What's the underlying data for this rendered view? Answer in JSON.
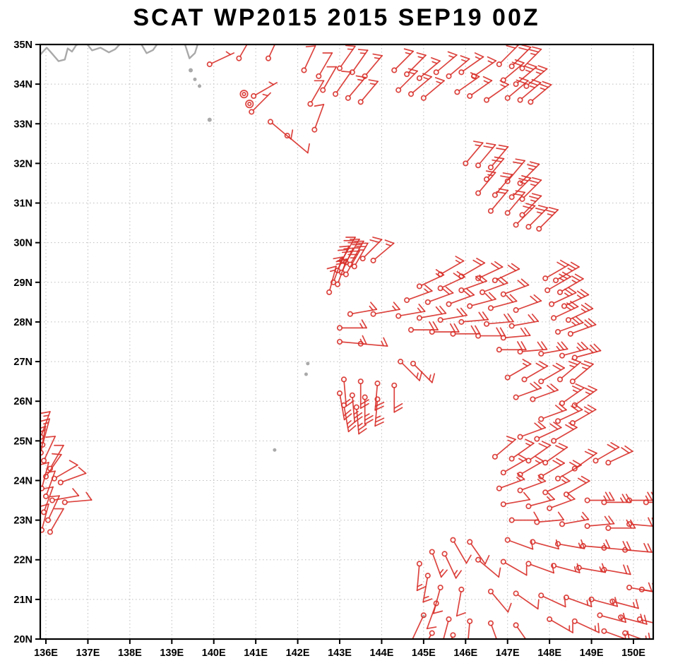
{
  "title": "SCAT WP2015 2015 SEP19 00Z",
  "chart_data": {
    "type": "scatter",
    "subtype": "wind_barb_map",
    "title": "SCAT WP2015 2015 SEP19 00Z",
    "x_axis": {
      "tick_values": [
        136,
        137,
        138,
        139,
        140,
        141,
        142,
        143,
        144,
        145,
        146,
        147,
        148,
        149,
        150
      ],
      "tick_labels": [
        "136E",
        "137E",
        "138E",
        "139E",
        "140E",
        "141E",
        "142E",
        "143E",
        "144E",
        "145E",
        "146E",
        "147E",
        "148E",
        "149E",
        "150E"
      ]
    },
    "y_axis": {
      "tick_values": [
        20,
        21,
        22,
        23,
        24,
        25,
        26,
        27,
        28,
        29,
        30,
        31,
        32,
        33,
        34,
        35
      ],
      "tick_labels": [
        "20N",
        "21N",
        "22N",
        "23N",
        "24N",
        "25N",
        "26N",
        "27N",
        "28N",
        "29N",
        "30N",
        "31N",
        "32N",
        "33N",
        "34N",
        "35N"
      ]
    },
    "frame": {
      "lon_min": 135.865,
      "lon_max": 150.471,
      "lat_min": 20,
      "lat_max": 35
    },
    "grid": true,
    "colors": {
      "barb": "#d8302a",
      "coast": "#a9a9a9",
      "grid": "#bdbdbd",
      "frame": "#000000",
      "label": "#000000"
    },
    "barb_units": "knots",
    "barbs": [
      [
        139.9,
        34.5,
        65,
        5
      ],
      [
        140.6,
        34.65,
        30,
        10
      ],
      [
        141.3,
        34.65,
        25,
        10
      ],
      [
        142.15,
        34.35,
        25,
        10
      ],
      [
        142.5,
        34.2,
        30,
        10
      ],
      [
        143.0,
        34.4,
        35,
        15
      ],
      [
        143.3,
        34.3,
        35,
        15
      ],
      [
        143.6,
        34.2,
        40,
        15
      ],
      [
        144.3,
        34.35,
        45,
        15
      ],
      [
        144.6,
        34.25,
        45,
        15
      ],
      [
        144.9,
        34.15,
        50,
        15
      ],
      [
        145.3,
        34.3,
        50,
        15
      ],
      [
        145.6,
        34.2,
        50,
        15
      ],
      [
        145.9,
        34.3,
        55,
        15
      ],
      [
        146.2,
        34.2,
        55,
        15
      ],
      [
        146.8,
        34.5,
        45,
        20
      ],
      [
        147.1,
        34.45,
        45,
        20
      ],
      [
        147.35,
        34.4,
        45,
        25
      ],
      [
        142.6,
        33.85,
        30,
        10
      ],
      [
        142.9,
        33.75,
        35,
        10
      ],
      [
        143.2,
        33.65,
        40,
        15
      ],
      [
        143.5,
        33.55,
        40,
        15
      ],
      [
        144.4,
        33.85,
        45,
        15
      ],
      [
        144.7,
        33.75,
        50,
        15
      ],
      [
        145.0,
        33.65,
        50,
        15
      ],
      [
        145.8,
        33.8,
        55,
        15
      ],
      [
        146.1,
        33.7,
        55,
        15
      ],
      [
        146.5,
        33.6,
        55,
        15
      ],
      [
        146.9,
        34.1,
        50,
        20
      ],
      [
        147.2,
        34.0,
        50,
        25
      ],
      [
        147.45,
        33.95,
        50,
        25
      ],
      [
        147.0,
        33.65,
        50,
        20
      ],
      [
        147.3,
        33.6,
        50,
        25
      ],
      [
        147.55,
        33.55,
        50,
        25
      ],
      [
        142.3,
        33.5,
        30,
        10
      ],
      [
        142.4,
        32.85,
        20,
        10
      ],
      [
        140.95,
        33.7,
        60,
        5
      ],
      [
        140.9,
        33.3,
        45,
        5
      ],
      [
        141.35,
        33.05,
        130,
        10
      ],
      [
        141.75,
        32.7,
        130,
        10
      ],
      [
        146.0,
        32.0,
        40,
        15
      ],
      [
        146.3,
        31.95,
        40,
        20
      ],
      [
        146.6,
        31.9,
        40,
        20
      ],
      [
        146.5,
        31.6,
        40,
        20
      ],
      [
        147.0,
        31.55,
        40,
        20
      ],
      [
        147.3,
        31.5,
        45,
        25
      ],
      [
        146.3,
        31.25,
        40,
        15
      ],
      [
        146.7,
        31.2,
        40,
        20
      ],
      [
        147.1,
        31.15,
        45,
        25
      ],
      [
        147.35,
        31.1,
        45,
        25
      ],
      [
        146.6,
        30.8,
        40,
        20
      ],
      [
        147.0,
        30.75,
        40,
        20
      ],
      [
        147.35,
        30.7,
        45,
        25
      ],
      [
        147.2,
        30.45,
        45,
        20
      ],
      [
        147.5,
        30.4,
        45,
        25
      ],
      [
        147.75,
        30.35,
        45,
        25
      ],
      [
        143.05,
        29.55,
        30,
        20
      ],
      [
        143.15,
        29.5,
        30,
        20
      ],
      [
        143.25,
        29.45,
        30,
        25
      ],
      [
        143.35,
        29.4,
        30,
        25
      ],
      [
        142.95,
        29.3,
        25,
        20
      ],
      [
        143.05,
        29.25,
        25,
        20
      ],
      [
        143.15,
        29.2,
        30,
        25
      ],
      [
        142.85,
        29.0,
        20,
        15
      ],
      [
        142.95,
        28.95,
        20,
        20
      ],
      [
        142.75,
        28.75,
        15,
        15
      ],
      [
        143.55,
        29.6,
        45,
        20
      ],
      [
        143.8,
        29.55,
        50,
        15
      ],
      [
        145.4,
        29.2,
        60,
        15
      ],
      [
        145.9,
        29.15,
        60,
        20
      ],
      [
        146.3,
        29.1,
        65,
        20
      ],
      [
        146.7,
        29.05,
        65,
        20
      ],
      [
        147.9,
        29.1,
        60,
        20
      ],
      [
        148.15,
        29.05,
        60,
        25
      ],
      [
        144.9,
        28.9,
        65,
        15
      ],
      [
        145.4,
        28.85,
        65,
        20
      ],
      [
        145.9,
        28.8,
        70,
        20
      ],
      [
        146.4,
        28.75,
        70,
        20
      ],
      [
        146.9,
        28.7,
        70,
        20
      ],
      [
        147.95,
        28.8,
        60,
        25
      ],
      [
        148.25,
        28.75,
        60,
        25
      ],
      [
        144.6,
        28.55,
        70,
        15
      ],
      [
        145.1,
        28.5,
        70,
        20
      ],
      [
        145.6,
        28.45,
        70,
        20
      ],
      [
        146.1,
        28.4,
        75,
        20
      ],
      [
        146.6,
        28.35,
        75,
        20
      ],
      [
        147.2,
        28.3,
        70,
        20
      ],
      [
        148.05,
        28.45,
        65,
        25
      ],
      [
        148.35,
        28.4,
        65,
        25
      ],
      [
        143.25,
        28.2,
        80,
        15
      ],
      [
        143.8,
        28.2,
        80,
        15
      ],
      [
        144.4,
        28.15,
        80,
        15
      ],
      [
        144.9,
        28.1,
        80,
        20
      ],
      [
        145.4,
        28.05,
        80,
        20
      ],
      [
        145.9,
        28.0,
        85,
        20
      ],
      [
        146.5,
        27.95,
        85,
        20
      ],
      [
        147.1,
        27.9,
        80,
        20
      ],
      [
        148.1,
        28.1,
        65,
        25
      ],
      [
        148.45,
        28.05,
        65,
        25
      ],
      [
        143.0,
        27.85,
        90,
        15
      ],
      [
        144.7,
        27.8,
        90,
        20
      ],
      [
        145.2,
        27.75,
        90,
        20
      ],
      [
        145.7,
        27.7,
        90,
        20
      ],
      [
        146.3,
        27.65,
        90,
        20
      ],
      [
        146.9,
        27.6,
        85,
        20
      ],
      [
        148.2,
        27.75,
        70,
        25
      ],
      [
        148.5,
        27.7,
        70,
        25
      ],
      [
        143.0,
        27.5,
        95,
        15
      ],
      [
        143.5,
        27.45,
        95,
        15
      ],
      [
        146.8,
        27.3,
        90,
        20
      ],
      [
        147.3,
        27.25,
        85,
        20
      ],
      [
        147.8,
        27.2,
        80,
        25
      ],
      [
        148.3,
        27.15,
        75,
        25
      ],
      [
        148.6,
        27.1,
        75,
        25
      ],
      [
        144.45,
        27.0,
        135,
        15
      ],
      [
        144.75,
        26.95,
        135,
        15
      ],
      [
        143.1,
        26.55,
        175,
        15
      ],
      [
        143.5,
        26.5,
        180,
        20
      ],
      [
        143.9,
        26.45,
        185,
        20
      ],
      [
        144.3,
        26.4,
        180,
        20
      ],
      [
        143.0,
        26.2,
        170,
        20
      ],
      [
        143.3,
        26.15,
        175,
        25
      ],
      [
        143.6,
        26.1,
        180,
        25
      ],
      [
        143.9,
        26.05,
        185,
        25
      ],
      [
        143.1,
        25.9,
        170,
        25
      ],
      [
        143.4,
        25.85,
        175,
        25
      ],
      [
        147.0,
        26.6,
        60,
        15
      ],
      [
        147.4,
        26.55,
        60,
        20
      ],
      [
        147.8,
        26.5,
        60,
        20
      ],
      [
        148.25,
        26.55,
        50,
        25
      ],
      [
        148.55,
        26.5,
        50,
        25
      ],
      [
        147.2,
        26.1,
        70,
        20
      ],
      [
        147.6,
        26.05,
        70,
        20
      ],
      [
        148.3,
        25.95,
        55,
        25
      ],
      [
        148.6,
        25.9,
        55,
        25
      ],
      [
        147.8,
        25.55,
        70,
        20
      ],
      [
        148.2,
        25.5,
        65,
        20
      ],
      [
        148.55,
        25.45,
        60,
        25
      ],
      [
        147.3,
        25.1,
        70,
        20
      ],
      [
        147.7,
        25.05,
        65,
        20
      ],
      [
        148.1,
        25.0,
        60,
        20
      ],
      [
        146.7,
        24.6,
        50,
        15
      ],
      [
        147.1,
        24.55,
        55,
        15
      ],
      [
        147.5,
        24.5,
        55,
        20
      ],
      [
        147.9,
        24.45,
        55,
        20
      ],
      [
        149.1,
        24.5,
        60,
        20
      ],
      [
        149.4,
        24.45,
        65,
        20
      ],
      [
        146.9,
        24.2,
        60,
        15
      ],
      [
        147.3,
        24.15,
        60,
        15
      ],
      [
        147.8,
        24.1,
        60,
        20
      ],
      [
        148.2,
        24.05,
        60,
        20
      ],
      [
        148.6,
        24.3,
        55,
        20
      ],
      [
        146.8,
        23.8,
        70,
        15
      ],
      [
        147.3,
        23.75,
        70,
        15
      ],
      [
        147.9,
        23.7,
        65,
        15
      ],
      [
        148.4,
        23.65,
        60,
        20
      ],
      [
        146.9,
        23.4,
        80,
        10
      ],
      [
        147.5,
        23.35,
        75,
        15
      ],
      [
        148.0,
        23.3,
        70,
        15
      ],
      [
        148.9,
        23.5,
        90,
        25
      ],
      [
        149.3,
        23.45,
        90,
        25
      ],
      [
        149.9,
        23.5,
        90,
        25
      ],
      [
        150.3,
        23.45,
        90,
        25
      ],
      [
        147.1,
        23.0,
        90,
        10
      ],
      [
        147.7,
        22.95,
        85,
        10
      ],
      [
        148.3,
        22.9,
        80,
        15
      ],
      [
        148.9,
        22.85,
        85,
        20
      ],
      [
        149.4,
        22.8,
        90,
        20
      ],
      [
        149.9,
        22.9,
        95,
        20
      ],
      [
        145.7,
        22.5,
        150,
        10
      ],
      [
        146.1,
        22.45,
        145,
        10
      ],
      [
        147.0,
        22.5,
        110,
        10
      ],
      [
        147.6,
        22.45,
        105,
        10
      ],
      [
        148.2,
        22.4,
        100,
        15
      ],
      [
        148.8,
        22.35,
        95,
        15
      ],
      [
        149.3,
        22.3,
        95,
        20
      ],
      [
        149.8,
        22.25,
        95,
        20
      ],
      [
        145.2,
        22.2,
        160,
        15
      ],
      [
        145.5,
        22.15,
        155,
        15
      ],
      [
        146.3,
        22.0,
        130,
        10
      ],
      [
        146.9,
        21.95,
        120,
        10
      ],
      [
        147.5,
        21.9,
        110,
        10
      ],
      [
        148.1,
        21.85,
        105,
        15
      ],
      [
        148.7,
        21.8,
        100,
        15
      ],
      [
        149.3,
        21.75,
        100,
        20
      ],
      [
        144.9,
        21.9,
        185,
        15
      ],
      [
        145.1,
        21.6,
        190,
        15
      ],
      [
        145.4,
        21.3,
        195,
        10
      ],
      [
        145.9,
        21.25,
        190,
        10
      ],
      [
        146.6,
        21.2,
        140,
        10
      ],
      [
        147.2,
        21.15,
        125,
        10
      ],
      [
        147.8,
        21.1,
        115,
        10
      ],
      [
        148.4,
        21.05,
        110,
        15
      ],
      [
        149.0,
        21.0,
        105,
        15
      ],
      [
        149.5,
        20.95,
        105,
        15
      ],
      [
        149.9,
        21.3,
        100,
        20
      ],
      [
        150.2,
        21.25,
        100,
        20
      ],
      [
        145.3,
        20.9,
        200,
        10
      ],
      [
        145.0,
        20.6,
        205,
        10
      ],
      [
        145.6,
        20.5,
        195,
        10
      ],
      [
        146.1,
        20.45,
        185,
        10
      ],
      [
        146.6,
        20.4,
        160,
        10
      ],
      [
        147.2,
        20.35,
        145,
        10
      ],
      [
        145.2,
        20.15,
        210,
        10
      ],
      [
        145.7,
        20.1,
        200,
        10
      ],
      [
        148.0,
        20.5,
        120,
        15
      ],
      [
        148.6,
        20.45,
        115,
        15
      ],
      [
        149.2,
        20.6,
        105,
        15
      ],
      [
        149.7,
        20.55,
        105,
        20
      ],
      [
        150.15,
        20.5,
        105,
        20
      ],
      [
        149.3,
        20.2,
        110,
        15
      ],
      [
        149.8,
        20.15,
        110,
        15
      ],
      [
        135.88,
        25.1,
        20,
        15
      ],
      [
        135.92,
        24.9,
        15,
        15
      ],
      [
        135.88,
        24.7,
        10,
        15
      ],
      [
        135.95,
        24.5,
        25,
        10
      ],
      [
        136.1,
        24.3,
        30,
        10
      ],
      [
        136.0,
        24.1,
        35,
        10
      ],
      [
        136.2,
        24.05,
        60,
        10
      ],
      [
        136.35,
        23.95,
        70,
        10
      ],
      [
        135.9,
        23.8,
        15,
        10
      ],
      [
        136.0,
        23.6,
        20,
        10
      ],
      [
        136.15,
        23.5,
        80,
        10
      ],
      [
        136.45,
        23.45,
        85,
        10
      ],
      [
        135.95,
        23.2,
        20,
        10
      ],
      [
        136.05,
        23.0,
        25,
        10
      ],
      [
        135.9,
        22.75,
        15,
        10
      ],
      [
        136.1,
        22.7,
        30,
        10
      ]
    ],
    "calm_stations": [
      [
        140.72,
        33.75
      ],
      [
        140.85,
        33.5
      ]
    ],
    "coastlines": [
      [
        [
          135.87,
          34.75
        ],
        [
          136.02,
          34.92
        ],
        [
          136.12,
          34.8
        ],
        [
          136.3,
          34.58
        ],
        [
          136.45,
          34.62
        ],
        [
          136.52,
          34.9
        ],
        [
          136.62,
          34.82
        ],
        [
          136.72,
          34.98
        ],
        [
          136.85,
          35.05
        ]
      ],
      [
        [
          136.95,
          35.05
        ],
        [
          137.1,
          34.85
        ],
        [
          137.3,
          34.92
        ],
        [
          137.5,
          34.8
        ],
        [
          137.65,
          34.88
        ],
        [
          137.8,
          35.05
        ]
      ],
      [
        [
          138.25,
          35.05
        ],
        [
          138.4,
          34.78
        ],
        [
          138.55,
          34.86
        ],
        [
          138.68,
          35.05
        ]
      ],
      [
        [
          139.3,
          35.05
        ],
        [
          139.42,
          34.65
        ],
        [
          139.55,
          34.78
        ],
        [
          139.63,
          35.05
        ]
      ]
    ],
    "islands": [
      [
        139.45,
        34.35,
        3
      ],
      [
        139.55,
        34.12,
        2.5
      ],
      [
        139.66,
        33.95,
        2.5
      ],
      [
        139.9,
        33.1,
        3
      ],
      [
        142.24,
        26.95,
        2.5
      ],
      [
        142.2,
        26.68,
        2.5
      ],
      [
        141.45,
        24.77,
        2.5
      ],
      [
        145.0,
        20.57,
        2.2
      ]
    ]
  }
}
